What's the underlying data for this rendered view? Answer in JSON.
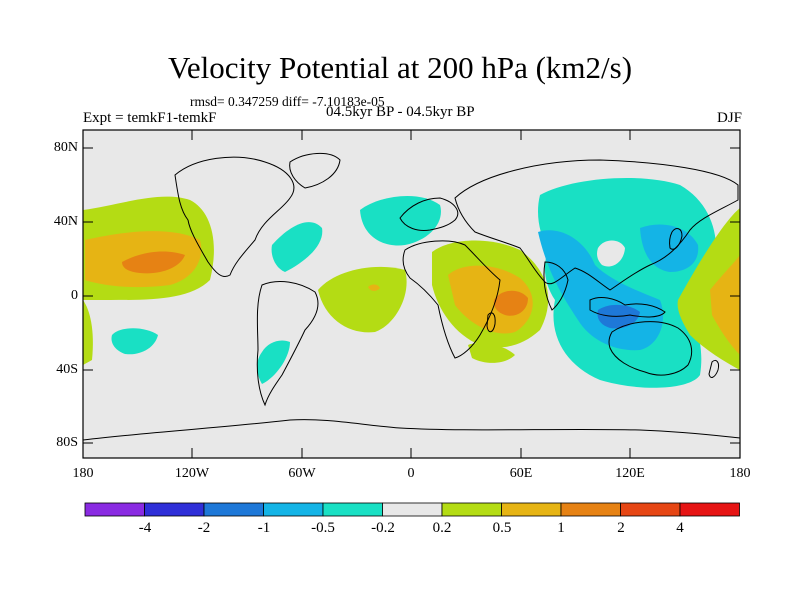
{
  "title": "Velocity Potential at 200 hPa (km2/s)",
  "stats": "rmsd= 0.347259 diff= -7.10183e-05",
  "experiment": "Expt = temkF1-temkF",
  "period": "04.5kyr BP - 04.5kyr BP",
  "season": "DJF",
  "lat_labels": [
    "80N",
    "40N",
    "0",
    "40S",
    "80S"
  ],
  "lon_labels": [
    "180",
    "120W",
    "60W",
    "0",
    "60E",
    "120E",
    "180"
  ],
  "colorbar": {
    "labels": [
      "-4",
      "-2",
      "-1",
      "-0.5",
      "-0.2",
      "0.2",
      "0.5",
      "1",
      "2",
      "4"
    ],
    "colors": [
      "#8a2be2",
      "#2f2fd8",
      "#1e78d8",
      "#14b4e6",
      "#19e0c4",
      "#e8e8e8",
      "#b4dc14",
      "#e6b414",
      "#e68214",
      "#e64614",
      "#e61414"
    ]
  },
  "colors": {
    "background": "#e8e8e8",
    "land_outline": "#000000"
  }
}
